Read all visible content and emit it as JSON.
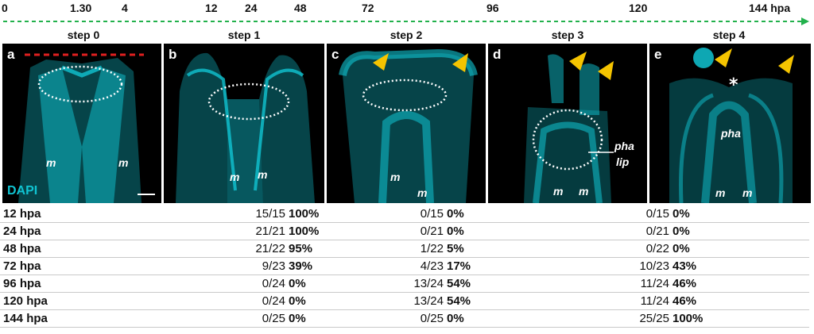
{
  "timeline": {
    "labels": [
      "0",
      "1.30",
      "4",
      "12",
      "24",
      "48",
      "72",
      "96",
      "120",
      "144 hpa"
    ],
    "color": "#22b14c"
  },
  "steps": [
    "step 0",
    "step 1",
    "step 2",
    "step 3",
    "step 4"
  ],
  "panels": [
    {
      "letter": "a",
      "labels": [
        "m",
        "m"
      ],
      "stain": "DAPI"
    },
    {
      "letter": "b",
      "labels": [
        "m",
        "m"
      ]
    },
    {
      "letter": "c",
      "labels": [
        "m",
        "m"
      ]
    },
    {
      "letter": "d",
      "labels": [
        "m",
        "m"
      ],
      "annotation": [
        "pha",
        "lip"
      ]
    },
    {
      "letter": "e",
      "labels": [
        "pha",
        "m",
        "m"
      ],
      "star": "*"
    }
  ],
  "colors": {
    "tissue": "#10c4d2",
    "arrowhead": "#f5c400",
    "cut_line": "#e02020",
    "outline": "#ffffff"
  },
  "table": {
    "rows": [
      {
        "time": "12 hpa",
        "s1_count": "15/15",
        "s1_pct": "100%",
        "s2_count": "0/15",
        "s2_pct": "0%",
        "s3_count": "0/15",
        "s3_pct": "0%"
      },
      {
        "time": "24 hpa",
        "s1_count": "21/21",
        "s1_pct": "100%",
        "s2_count": "0/21",
        "s2_pct": "0%",
        "s3_count": "0/21",
        "s3_pct": "0%"
      },
      {
        "time": "48 hpa",
        "s1_count": "21/22",
        "s1_pct": "95%",
        "s2_count": "1/22",
        "s2_pct": "5%",
        "s3_count": "0/22",
        "s3_pct": "0%"
      },
      {
        "time": "72 hpa",
        "s1_count": "9/23",
        "s1_pct": "39%",
        "s2_count": "4/23",
        "s2_pct": "17%",
        "s3_count": "10/23",
        "s3_pct": "43%"
      },
      {
        "time": "96 hpa",
        "s1_count": "0/24",
        "s1_pct": "0%",
        "s2_count": "13/24",
        "s2_pct": "54%",
        "s3_count": "11/24",
        "s3_pct": "46%"
      },
      {
        "time": "120 hpa",
        "s1_count": "0/24",
        "s1_pct": "0%",
        "s2_count": "13/24",
        "s2_pct": "54%",
        "s3_count": "11/24",
        "s3_pct": "46%"
      },
      {
        "time": "144 hpa",
        "s1_count": "0/25",
        "s1_pct": "0%",
        "s2_count": "0/25",
        "s2_pct": "0%",
        "s3_count": "25/25",
        "s3_pct": "100%"
      }
    ]
  }
}
